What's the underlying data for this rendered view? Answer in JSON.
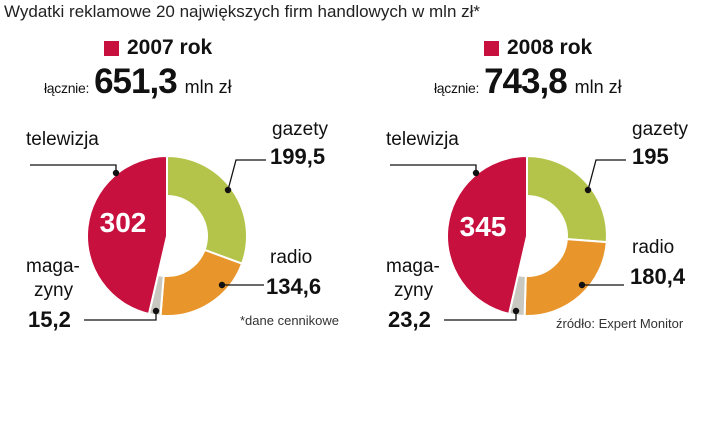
{
  "title": "Wydatki reklamowe 20 największych firm handlowych w mln zł*",
  "total_prefix": "łącznie:",
  "unit": "mln zł",
  "category_labels": {
    "telewizja": "telewizja",
    "gazety": "gazety",
    "radio": "radio",
    "magazyny_line1": "maga-",
    "magazyny_line2": "zyny"
  },
  "footnote": "*dane cennikowe",
  "source": "źródło: Expert Monitor",
  "colors": {
    "telewizja": "#c8103e",
    "gazety": "#b4c44a",
    "radio": "#e8962c",
    "magazyny": "#c8c8c0",
    "year_swatch": "#c8103e"
  },
  "chart_data": [
    {
      "type": "pie",
      "variant": "donut",
      "year_label": "2007 rok",
      "total": "651,3",
      "categories": [
        "telewizja",
        "gazety",
        "radio",
        "magazyny"
      ],
      "values": [
        302,
        199.5,
        134.6,
        15.2
      ],
      "value_labels": [
        "302",
        "199,5",
        "134,6",
        "15,2"
      ]
    },
    {
      "type": "pie",
      "variant": "donut",
      "year_label": "2008 rok",
      "total": "743,8",
      "categories": [
        "telewizja",
        "gazety",
        "radio",
        "magazyny"
      ],
      "values": [
        345,
        195,
        180.4,
        23.2
      ],
      "value_labels": [
        "345",
        "195",
        "180,4",
        "23,2"
      ]
    }
  ]
}
